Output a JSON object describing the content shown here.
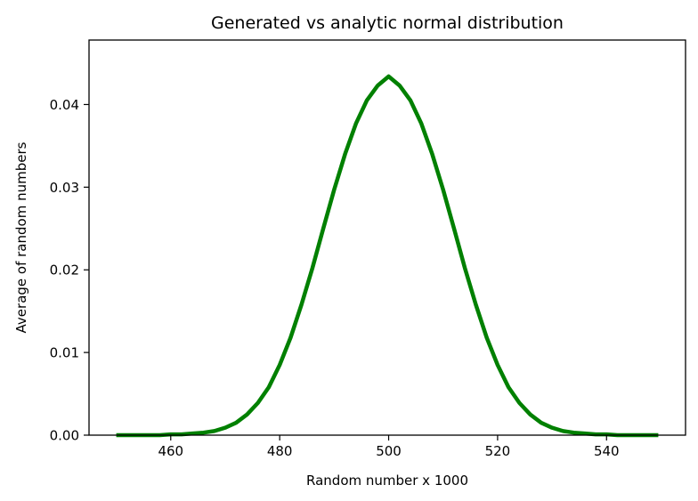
{
  "chart_data": {
    "type": "line",
    "title": "Generated vs analytic normal distribution",
    "xlabel": "Random number x 1000",
    "ylabel": "Average of random numbers",
    "xlim": [
      445,
      554.5
    ],
    "ylim": [
      0,
      0.0478
    ],
    "x_ticks": [
      460,
      480,
      500,
      520,
      540
    ],
    "x_tick_labels": [
      "460",
      "480",
      "500",
      "520",
      "540"
    ],
    "y_ticks": [
      0,
      0.01,
      0.02,
      0.03,
      0.04
    ],
    "y_tick_labels": [
      "0.00",
      "0.01",
      "0.02",
      "0.03",
      "0.04"
    ],
    "grid": false,
    "series": [
      {
        "color": "#008000",
        "x": [
          450,
          452,
          454,
          456,
          458,
          460,
          462,
          464,
          466,
          468,
          470,
          472,
          474,
          476,
          478,
          480,
          482,
          484,
          486,
          488,
          490,
          492,
          494,
          496,
          498,
          500,
          502,
          504,
          506,
          508,
          510,
          512,
          514,
          516,
          518,
          520,
          522,
          524,
          526,
          528,
          530,
          532,
          534,
          536,
          538,
          540,
          542,
          544,
          546,
          548,
          549.5
        ],
        "y": [
          0.0,
          0.0,
          0.0,
          0.0,
          0.0,
          0.0001,
          0.0001,
          0.0002,
          0.0003,
          0.0005,
          0.0009,
          0.0015,
          0.0025,
          0.0039,
          0.0058,
          0.0085,
          0.0118,
          0.0158,
          0.0202,
          0.025,
          0.0297,
          0.034,
          0.0377,
          0.0405,
          0.0423,
          0.0434,
          0.0423,
          0.0405,
          0.0377,
          0.034,
          0.0297,
          0.025,
          0.0202,
          0.0158,
          0.0118,
          0.0085,
          0.0058,
          0.0039,
          0.0025,
          0.0015,
          0.0009,
          0.0005,
          0.0003,
          0.0002,
          0.0001,
          0.0001,
          0.0,
          0.0,
          0.0,
          0.0,
          0.0
        ]
      }
    ]
  }
}
